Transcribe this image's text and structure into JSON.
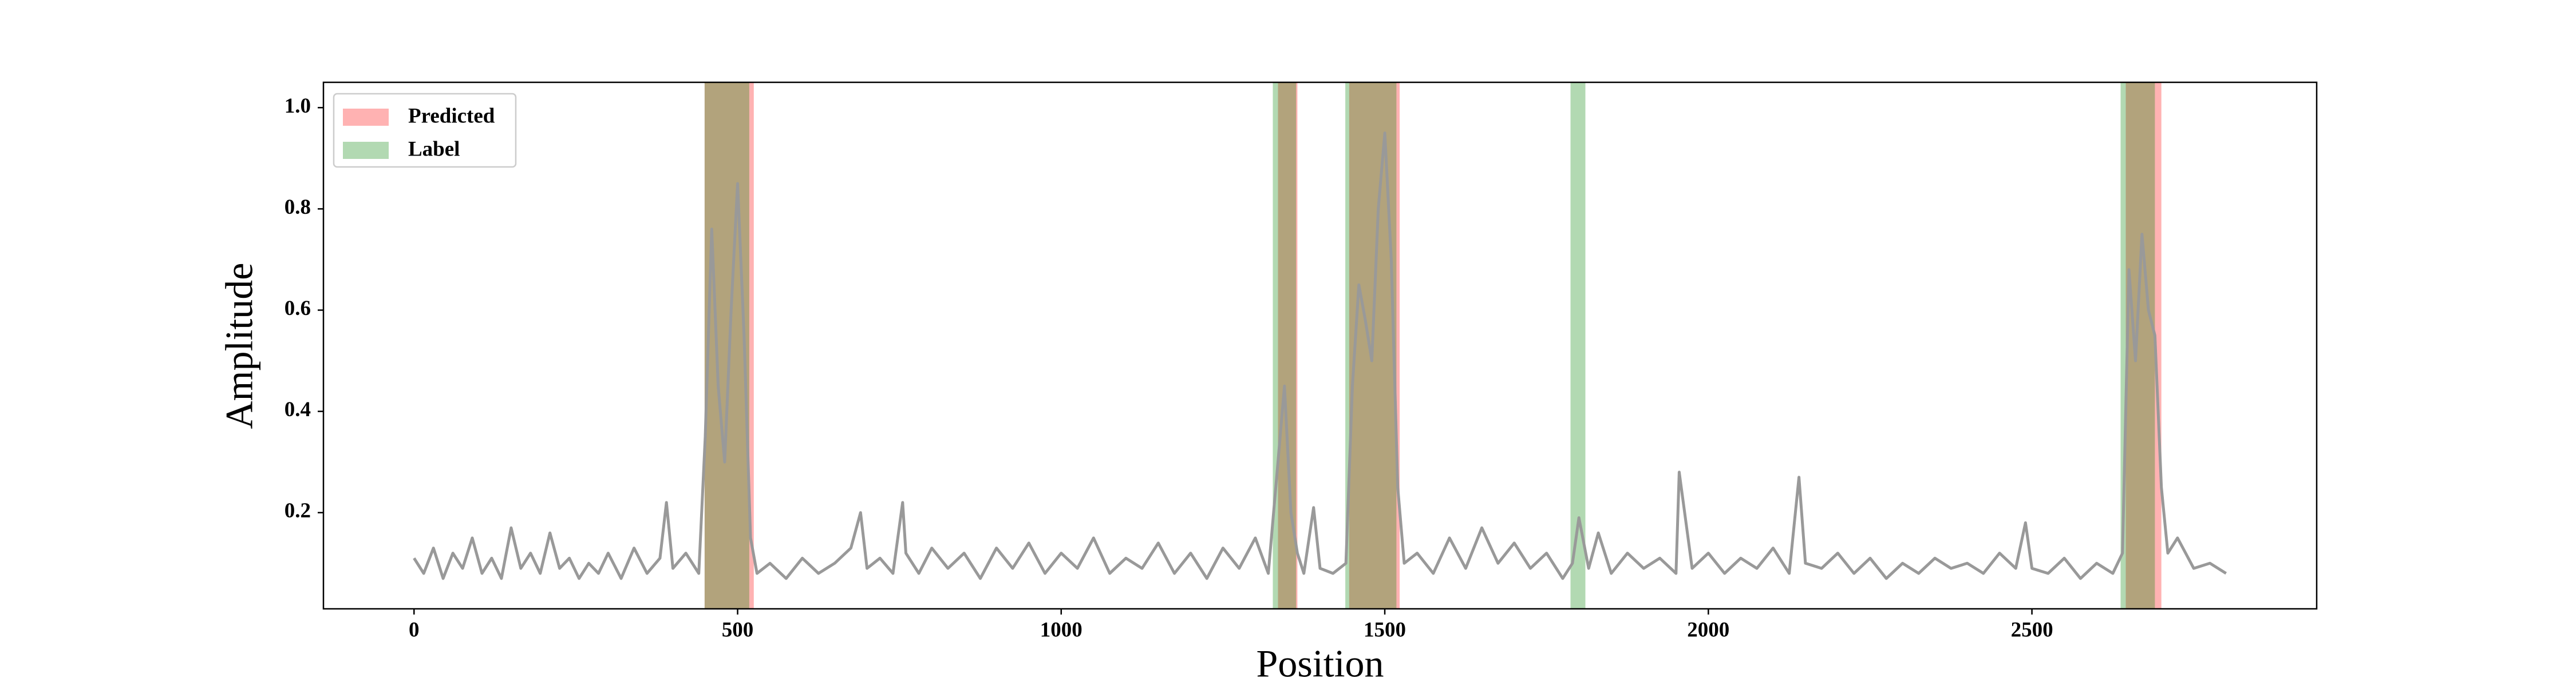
{
  "chart_data": {
    "type": "line",
    "xlabel": "Position",
    "ylabel": "Amplitude",
    "xlim": [
      -140,
      2940
    ],
    "ylim": [
      0.01,
      1.05
    ],
    "xticks": [
      0,
      500,
      1000,
      1500,
      2000,
      2500
    ],
    "yticks": [
      0.2,
      0.4,
      0.6,
      0.8,
      {
        "value": 1,
        "label": "1.0"
      }
    ],
    "color": "#999999",
    "legend": "upper left",
    "x": [
      0,
      15,
      30,
      45,
      60,
      75,
      90,
      105,
      120,
      135,
      150,
      165,
      180,
      195,
      210,
      225,
      240,
      255,
      270,
      285,
      300,
      320,
      340,
      360,
      380,
      390,
      400,
      420,
      440,
      450,
      460,
      470,
      480,
      490,
      500,
      510,
      520,
      530,
      550,
      575,
      600,
      625,
      650,
      675,
      690,
      700,
      720,
      740,
      755,
      760,
      780,
      800,
      825,
      850,
      875,
      900,
      925,
      950,
      975,
      1000,
      1025,
      1050,
      1075,
      1100,
      1125,
      1150,
      1175,
      1200,
      1225,
      1250,
      1275,
      1300,
      1320,
      1335,
      1345,
      1355,
      1365,
      1375,
      1390,
      1400,
      1420,
      1440,
      1450,
      1460,
      1470,
      1480,
      1490,
      1500,
      1510,
      1520,
      1530,
      1550,
      1575,
      1600,
      1625,
      1650,
      1675,
      1700,
      1725,
      1750,
      1775,
      1790,
      1800,
      1815,
      1830,
      1850,
      1875,
      1900,
      1925,
      1950,
      1955,
      1975,
      2000,
      2025,
      2050,
      2075,
      2100,
      2125,
      2140,
      2150,
      2175,
      2200,
      2225,
      2250,
      2275,
      2300,
      2325,
      2350,
      2375,
      2400,
      2425,
      2450,
      2475,
      2490,
      2500,
      2525,
      2550,
      2575,
      2600,
      2625,
      2640,
      2650,
      2660,
      2670,
      2680,
      2690,
      2700,
      2710,
      2725,
      2750,
      2775,
      2800
    ],
    "values": [
      0.11,
      0.08,
      0.13,
      0.07,
      0.12,
      0.09,
      0.15,
      0.08,
      0.11,
      0.07,
      0.17,
      0.09,
      0.12,
      0.08,
      0.16,
      0.09,
      0.11,
      0.07,
      0.1,
      0.08,
      0.12,
      0.07,
      0.13,
      0.08,
      0.11,
      0.22,
      0.09,
      0.12,
      0.08,
      0.35,
      0.76,
      0.45,
      0.3,
      0.6,
      0.85,
      0.55,
      0.15,
      0.08,
      0.1,
      0.07,
      0.11,
      0.08,
      0.1,
      0.13,
      0.2,
      0.09,
      0.11,
      0.08,
      0.22,
      0.12,
      0.08,
      0.13,
      0.09,
      0.12,
      0.07,
      0.13,
      0.09,
      0.14,
      0.08,
      0.12,
      0.09,
      0.15,
      0.08,
      0.11,
      0.09,
      0.14,
      0.08,
      0.12,
      0.07,
      0.13,
      0.09,
      0.15,
      0.08,
      0.3,
      0.45,
      0.2,
      0.12,
      0.08,
      0.21,
      0.09,
      0.08,
      0.1,
      0.45,
      0.65,
      0.58,
      0.5,
      0.8,
      0.95,
      0.7,
      0.25,
      0.1,
      0.12,
      0.08,
      0.15,
      0.09,
      0.17,
      0.1,
      0.14,
      0.09,
      0.12,
      0.07,
      0.1,
      0.19,
      0.09,
      0.16,
      0.08,
      0.12,
      0.09,
      0.11,
      0.08,
      0.28,
      0.09,
      0.12,
      0.08,
      0.11,
      0.09,
      0.13,
      0.08,
      0.27,
      0.1,
      0.09,
      0.12,
      0.08,
      0.11,
      0.07,
      0.1,
      0.08,
      0.11,
      0.09,
      0.1,
      0.08,
      0.12,
      0.09,
      0.18,
      0.09,
      0.08,
      0.11,
      0.07,
      0.1,
      0.08,
      0.12,
      0.68,
      0.5,
      0.75,
      0.6,
      0.55,
      0.25,
      0.12,
      0.15,
      0.09,
      0.1,
      0.08
    ],
    "spans": [
      {
        "name": "Predicted",
        "color": "#ff0000",
        "alpha": 0.3,
        "ranges": [
          [
            449,
            525
          ],
          [
            1335,
            1365
          ],
          [
            1445,
            1523
          ],
          [
            2645,
            2700
          ]
        ]
      },
      {
        "name": "Label",
        "color": "#008000",
        "alpha": 0.3,
        "ranges": [
          [
            449,
            518
          ],
          [
            1327,
            1363
          ],
          [
            1439,
            1518
          ],
          [
            1787,
            1810
          ],
          [
            2637,
            2690
          ]
        ]
      }
    ]
  }
}
